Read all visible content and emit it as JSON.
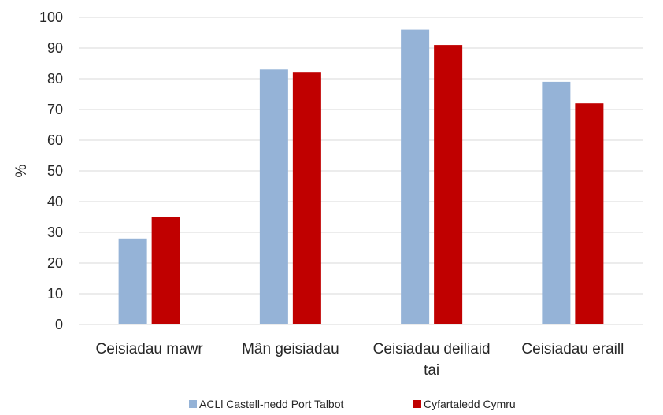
{
  "chart_data": {
    "type": "bar",
    "categories": [
      [
        "Ceisiadau mawr"
      ],
      [
        "Mân geisiadau"
      ],
      [
        "Ceisiadau deiliaid",
        "tai"
      ],
      [
        "Ceisiadau eraill"
      ]
    ],
    "series": [
      {
        "name": "ACLl Castell-nedd Port Talbot",
        "color": "#95B3D7",
        "values": [
          28,
          83,
          96,
          79
        ]
      },
      {
        "name": "Cyfartaledd Cymru",
        "color": "#C00000",
        "values": [
          35,
          82,
          91,
          72
        ]
      }
    ],
    "ylabel": "%",
    "xlabel": "",
    "ylim": [
      0,
      100
    ],
    "yticks": [
      0,
      10,
      20,
      30,
      40,
      50,
      60,
      70,
      80,
      90,
      100
    ],
    "grid": true,
    "legend_position": "bottom"
  }
}
